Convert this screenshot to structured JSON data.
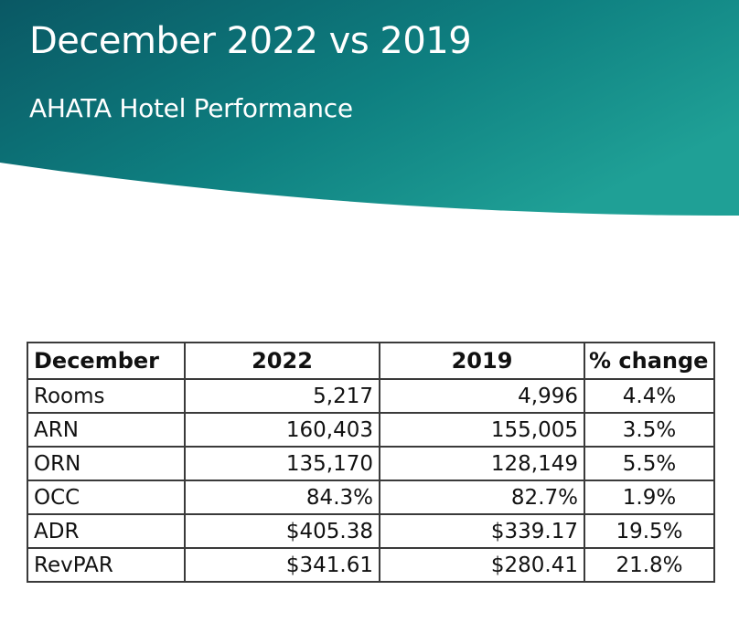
{
  "slide": {
    "title": "December 2022 vs 2019",
    "subtitle": "AHATA Hotel Performance",
    "colors": {
      "band_dark": "#0c5f6a",
      "band_light": "#1a9a94",
      "text": "#ffffff"
    }
  },
  "table": {
    "headers": [
      "December",
      "2022",
      "2019",
      "% change"
    ],
    "rows": [
      {
        "label": "Rooms",
        "y2022": "5,217",
        "y2019": "4,996",
        "change": "4.4%"
      },
      {
        "label": "ARN",
        "y2022": "160,403",
        "y2019": "155,005",
        "change": "3.5%"
      },
      {
        "label": "ORN",
        "y2022": "135,170",
        "y2019": "128,149",
        "change": "5.5%"
      },
      {
        "label": "OCC",
        "y2022": "84.3%",
        "y2019": "82.7%",
        "change": "1.9%"
      },
      {
        "label": "ADR",
        "y2022": "$405.38",
        "y2019": "$339.17",
        "change": "19.5%"
      },
      {
        "label": "RevPAR",
        "y2022": "$341.61",
        "y2019": "$280.41",
        "change": "21.8%"
      }
    ]
  }
}
